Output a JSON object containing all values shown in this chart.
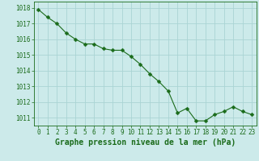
{
  "x": [
    0,
    1,
    2,
    3,
    4,
    5,
    6,
    7,
    8,
    9,
    10,
    11,
    12,
    13,
    14,
    15,
    16,
    17,
    18,
    19,
    20,
    21,
    22,
    23
  ],
  "y": [
    1017.9,
    1017.4,
    1017.0,
    1016.4,
    1016.0,
    1015.7,
    1015.7,
    1015.4,
    1015.3,
    1015.3,
    1014.9,
    1014.4,
    1013.8,
    1013.3,
    1012.7,
    1011.3,
    1011.6,
    1010.8,
    1010.8,
    1011.2,
    1011.4,
    1011.7,
    1011.4,
    1011.2
  ],
  "line_color": "#1a6b1a",
  "marker": "D",
  "marker_size": 2.5,
  "bg_color": "#cceaea",
  "grid_color": "#aad4d4",
  "axis_color": "#1a6b1a",
  "xlabel": "Graphe pression niveau de la mer (hPa)",
  "xlabel_fontsize": 7,
  "ylim": [
    1010.5,
    1018.4
  ],
  "xlim": [
    -0.5,
    23.5
  ],
  "yticks": [
    1011,
    1012,
    1013,
    1014,
    1015,
    1016,
    1017,
    1018
  ],
  "xticks": [
    0,
    1,
    2,
    3,
    4,
    5,
    6,
    7,
    8,
    9,
    10,
    11,
    12,
    13,
    14,
    15,
    16,
    17,
    18,
    19,
    20,
    21,
    22,
    23
  ],
  "tick_fontsize": 5.5,
  "linewidth": 0.8
}
